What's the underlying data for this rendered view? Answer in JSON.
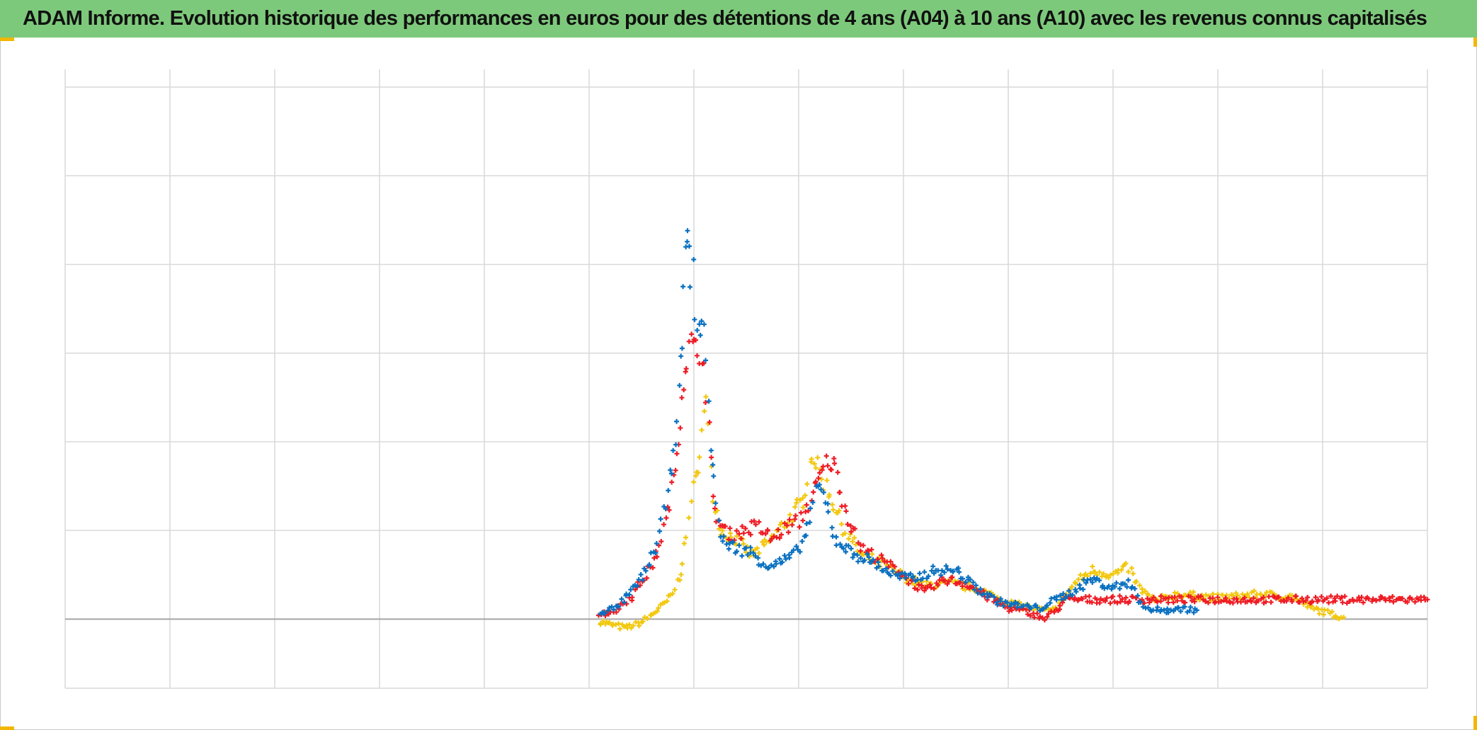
{
  "title": "ADAM Informe. Evolution historique des performances en euros pour des détentions de 4 ans (A04) à 10 ans (A10) avec les revenus connus capitalisés",
  "colors": {
    "title_bg": "#7dc97b",
    "grid": "#d9d9d9",
    "baseline": "#a6a6a6",
    "corner_marks": "#f2b705"
  },
  "chart_data": {
    "type": "scatter",
    "marker": "plus",
    "grid": true,
    "legend": "none",
    "xlim": [
      0,
      13
    ],
    "ylim": [
      -0.78,
      6.2
    ],
    "x_gridlines": 13,
    "y_gridlines": [
      -0.78,
      0,
      1,
      2,
      3,
      4,
      5,
      6
    ],
    "baseline_y": 0,
    "series": [
      {
        "color": "#f2c80f",
        "points": [
          [
            5.1,
            -0.03
          ],
          [
            5.2,
            -0.06
          ],
          [
            5.35,
            -0.1
          ],
          [
            5.5,
            -0.04
          ],
          [
            5.6,
            0.05
          ],
          [
            5.7,
            0.15
          ],
          [
            5.8,
            0.28
          ],
          [
            5.88,
            0.55
          ],
          [
            5.93,
            0.9
          ],
          [
            5.97,
            1.4
          ],
          [
            6.03,
            1.6
          ],
          [
            6.08,
            2.1
          ],
          [
            6.12,
            2.45
          ],
          [
            6.18,
            1.4
          ],
          [
            6.25,
            1.0
          ],
          [
            6.4,
            0.9
          ],
          [
            6.55,
            0.72
          ],
          [
            6.7,
            0.85
          ],
          [
            6.9,
            1.12
          ],
          [
            7.05,
            1.35
          ],
          [
            7.13,
            1.88
          ],
          [
            7.2,
            1.65
          ],
          [
            7.3,
            1.4
          ],
          [
            7.45,
            0.98
          ],
          [
            7.6,
            0.72
          ],
          [
            7.8,
            0.62
          ],
          [
            8.0,
            0.48
          ],
          [
            8.2,
            0.38
          ],
          [
            8.45,
            0.4
          ],
          [
            8.7,
            0.35
          ],
          [
            8.95,
            0.2
          ],
          [
            9.2,
            0.13
          ],
          [
            9.4,
            0.08
          ],
          [
            9.5,
            0.2
          ],
          [
            9.65,
            0.42
          ],
          [
            9.8,
            0.55
          ],
          [
            10.0,
            0.5
          ],
          [
            10.15,
            0.58
          ],
          [
            10.25,
            0.35
          ],
          [
            10.4,
            0.2
          ],
          [
            10.6,
            0.28
          ],
          [
            11.0,
            0.24
          ],
          [
            11.4,
            0.28
          ],
          [
            11.7,
            0.25
          ],
          [
            11.9,
            0.12
          ],
          [
            12.1,
            0.05
          ],
          [
            12.2,
            0.02
          ]
        ]
      },
      {
        "color": "#ee1c25",
        "points": [
          [
            5.1,
            0.05
          ],
          [
            5.25,
            0.1
          ],
          [
            5.4,
            0.25
          ],
          [
            5.55,
            0.5
          ],
          [
            5.65,
            0.75
          ],
          [
            5.75,
            1.2
          ],
          [
            5.82,
            1.7
          ],
          [
            5.87,
            2.3
          ],
          [
            5.92,
            2.9
          ],
          [
            5.97,
            3.1
          ],
          [
            6.02,
            3.0
          ],
          [
            6.08,
            3.05
          ],
          [
            6.12,
            2.6
          ],
          [
            6.18,
            1.3
          ],
          [
            6.25,
            1.05
          ],
          [
            6.35,
            0.95
          ],
          [
            6.5,
            1.0
          ],
          [
            6.6,
            1.05
          ],
          [
            6.75,
            0.9
          ],
          [
            6.9,
            1.05
          ],
          [
            7.0,
            1.1
          ],
          [
            7.1,
            1.3
          ],
          [
            7.2,
            1.6
          ],
          [
            7.28,
            1.8
          ],
          [
            7.35,
            1.7
          ],
          [
            7.45,
            1.2
          ],
          [
            7.6,
            0.8
          ],
          [
            7.8,
            0.65
          ],
          [
            8.0,
            0.5
          ],
          [
            8.2,
            0.3
          ],
          [
            8.4,
            0.45
          ],
          [
            8.6,
            0.4
          ],
          [
            8.8,
            0.25
          ],
          [
            9.0,
            0.12
          ],
          [
            9.2,
            0.08
          ],
          [
            9.35,
            0.0
          ],
          [
            9.45,
            0.1
          ],
          [
            9.55,
            0.22
          ],
          [
            10.0,
            0.22
          ],
          [
            10.5,
            0.22
          ],
          [
            11.0,
            0.22
          ],
          [
            11.5,
            0.22
          ],
          [
            12.0,
            0.22
          ],
          [
            12.5,
            0.22
          ],
          [
            13.0,
            0.22
          ]
        ]
      },
      {
        "color": "#0a70c0",
        "points": [
          [
            5.1,
            0.08
          ],
          [
            5.25,
            0.12
          ],
          [
            5.4,
            0.3
          ],
          [
            5.55,
            0.55
          ],
          [
            5.65,
            0.85
          ],
          [
            5.75,
            1.4
          ],
          [
            5.82,
            2.1
          ],
          [
            5.87,
            2.8
          ],
          [
            5.9,
            3.6
          ],
          [
            5.93,
            4.5
          ],
          [
            5.95,
            4.0
          ],
          [
            5.99,
            3.9
          ],
          [
            6.03,
            3.2
          ],
          [
            6.08,
            3.4
          ],
          [
            6.12,
            2.9
          ],
          [
            6.16,
            2.0
          ],
          [
            6.25,
            0.9
          ],
          [
            6.4,
            0.8
          ],
          [
            6.55,
            0.75
          ],
          [
            6.7,
            0.6
          ],
          [
            6.85,
            0.65
          ],
          [
            6.95,
            0.72
          ],
          [
            7.05,
            0.9
          ],
          [
            7.12,
            1.2
          ],
          [
            7.18,
            1.5
          ],
          [
            7.25,
            1.35
          ],
          [
            7.35,
            0.9
          ],
          [
            7.5,
            0.75
          ],
          [
            7.7,
            0.65
          ],
          [
            7.9,
            0.5
          ],
          [
            8.1,
            0.45
          ],
          [
            8.3,
            0.55
          ],
          [
            8.5,
            0.55
          ],
          [
            8.7,
            0.35
          ],
          [
            8.9,
            0.2
          ],
          [
            9.1,
            0.15
          ],
          [
            9.3,
            0.12
          ],
          [
            9.45,
            0.22
          ],
          [
            9.6,
            0.3
          ],
          [
            9.8,
            0.45
          ],
          [
            10.0,
            0.35
          ],
          [
            10.15,
            0.42
          ],
          [
            10.25,
            0.22
          ],
          [
            10.35,
            0.1
          ],
          [
            10.5,
            0.1
          ],
          [
            10.65,
            0.12
          ],
          [
            10.8,
            0.1
          ]
        ]
      }
    ]
  }
}
